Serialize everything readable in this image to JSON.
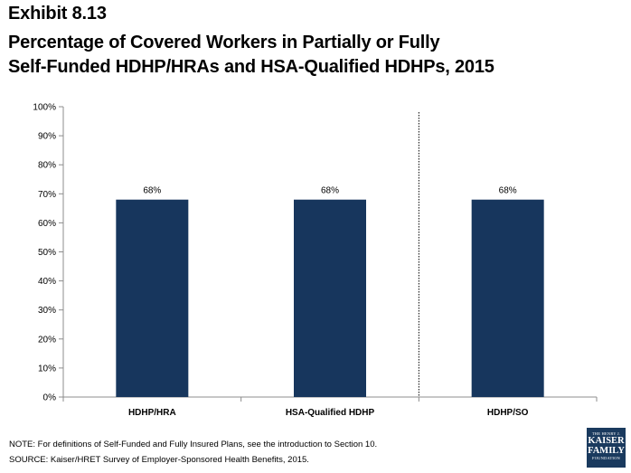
{
  "header": {
    "exhibit": "Exhibit 8.13",
    "title_line1": "Percentage of Covered Workers in Partially or Fully",
    "title_line2": "Self-Funded HDHP/HRAs and HSA-Qualified HDHPs, 2015"
  },
  "chart_data": {
    "type": "bar",
    "categories": [
      "HDHP/HRA",
      "HSA-Qualified HDHP",
      "HDHP/SO"
    ],
    "values": [
      68,
      68,
      68
    ],
    "data_labels": [
      "68%",
      "68%",
      "68%"
    ],
    "ylim": [
      0,
      100
    ],
    "yticks": [
      "0%",
      "10%",
      "20%",
      "30%",
      "40%",
      "50%",
      "60%",
      "70%",
      "80%",
      "90%",
      "100%"
    ],
    "bar_color": "#17365d",
    "grid": false,
    "separator_after_category": 1
  },
  "footer": {
    "note": "NOTE:  For definitions of Self-Funded and Fully Insured Plans, see the introduction to Section 10.",
    "source": "SOURCE:  Kaiser/HRET Survey of Employer-Sponsored Health Benefits, 2015."
  },
  "logo": {
    "line1": "THE HENRY J.",
    "line2": "KAISER",
    "line3": "FAMILY",
    "line4": "FOUNDATION",
    "color": "#1a3a5e"
  }
}
